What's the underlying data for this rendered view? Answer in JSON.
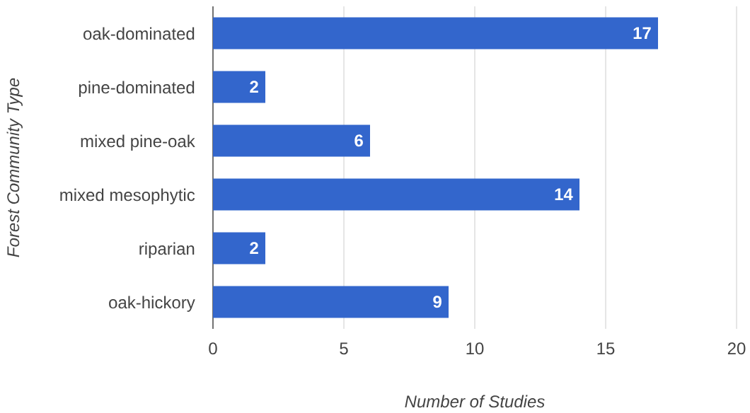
{
  "chart_data": {
    "type": "bar",
    "orientation": "horizontal",
    "xlabel": "Number of Studies",
    "ylabel": "Forest Community Type",
    "categories": [
      "oak-dominated",
      "pine-dominated",
      "mixed pine-oak",
      "mixed mesophytic",
      "riparian",
      "oak-hickory"
    ],
    "values": [
      17,
      2,
      6,
      14,
      2,
      9
    ],
    "color": "#3366cc",
    "xlim": [
      0,
      20
    ],
    "xticks": [
      0,
      5,
      10,
      15,
      20
    ],
    "grid": "x",
    "data_labels": true
  }
}
